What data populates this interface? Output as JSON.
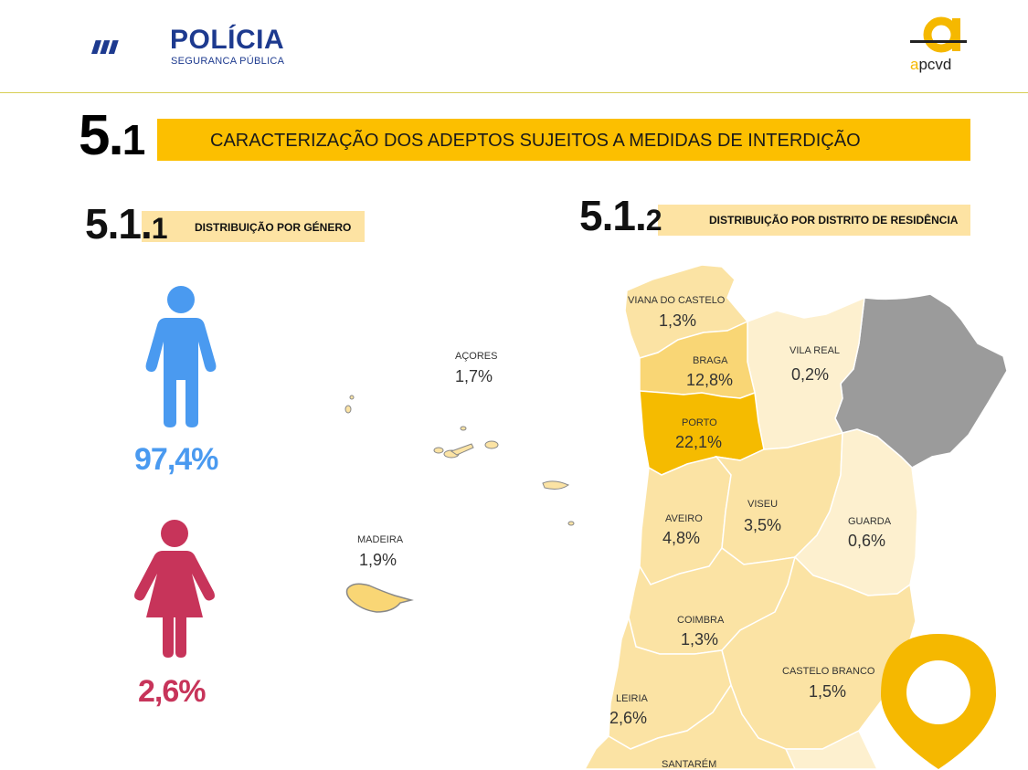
{
  "header": {
    "org_title": "POLÍCIA",
    "org_subtitle": "SEGURANCA PÚBLICA",
    "partner_logo_text": "apcvd",
    "partner_logo_first": "a",
    "partner_logo_rest": "pcvd"
  },
  "section": {
    "number_major": "5.",
    "number_minor": "1",
    "title": "CARACTERIZAÇÃO DOS ADEPTOS SUJEITOS A MEDIDAS DE INTERDIÇÃO"
  },
  "subsection_gender": {
    "number_major": "5.1.",
    "number_minor": "1",
    "title": "DISTRIBUIÇÃO POR GÉNERO",
    "male_pct": "97,4%",
    "female_pct": "2,6%"
  },
  "subsection_district": {
    "number_major": "5.1.",
    "number_minor": "2",
    "title": "DISTRIBUIÇÃO POR DISTRITO DE RESIDÊNCIA"
  },
  "districts": {
    "acores": {
      "name": "AÇORES",
      "value": "1,7%"
    },
    "madeira": {
      "name": "MADEIRA",
      "value": "1,9%"
    },
    "viana": {
      "name": "VIANA DO CASTELO",
      "value": "1,3%"
    },
    "braga": {
      "name": "BRAGA",
      "value": "12,8%"
    },
    "vila_real": {
      "name": "VILA REAL",
      "value": "0,2%"
    },
    "porto": {
      "name": "PORTO",
      "value": "22,1%"
    },
    "aveiro": {
      "name": "AVEIRO",
      "value": "4,8%"
    },
    "viseu": {
      "name": "VISEU",
      "value": "3,5%"
    },
    "guarda": {
      "name": "GUARDA",
      "value": "0,6%"
    },
    "coimbra": {
      "name": "COIMBRA",
      "value": "1,3%"
    },
    "castelo_branco": {
      "name": "CASTELO BRANCO",
      "value": "1,5%"
    },
    "leiria": {
      "name": "LEIRIA",
      "value": "2,6%"
    },
    "santarem": {
      "name": "SANTARÉM",
      "value": ""
    }
  },
  "colors": {
    "accent": "#fcbf00",
    "accent_light": "#fde3a3",
    "male": "#4a9af0",
    "female": "#c7345a",
    "brand_blue": "#1d3a8f",
    "map_porto": "#f5bb00",
    "map_braga": "#f9d675",
    "map_mid": "#fbe3a4",
    "map_light": "#fdf0cf",
    "map_grey": "#9b9b9b"
  }
}
